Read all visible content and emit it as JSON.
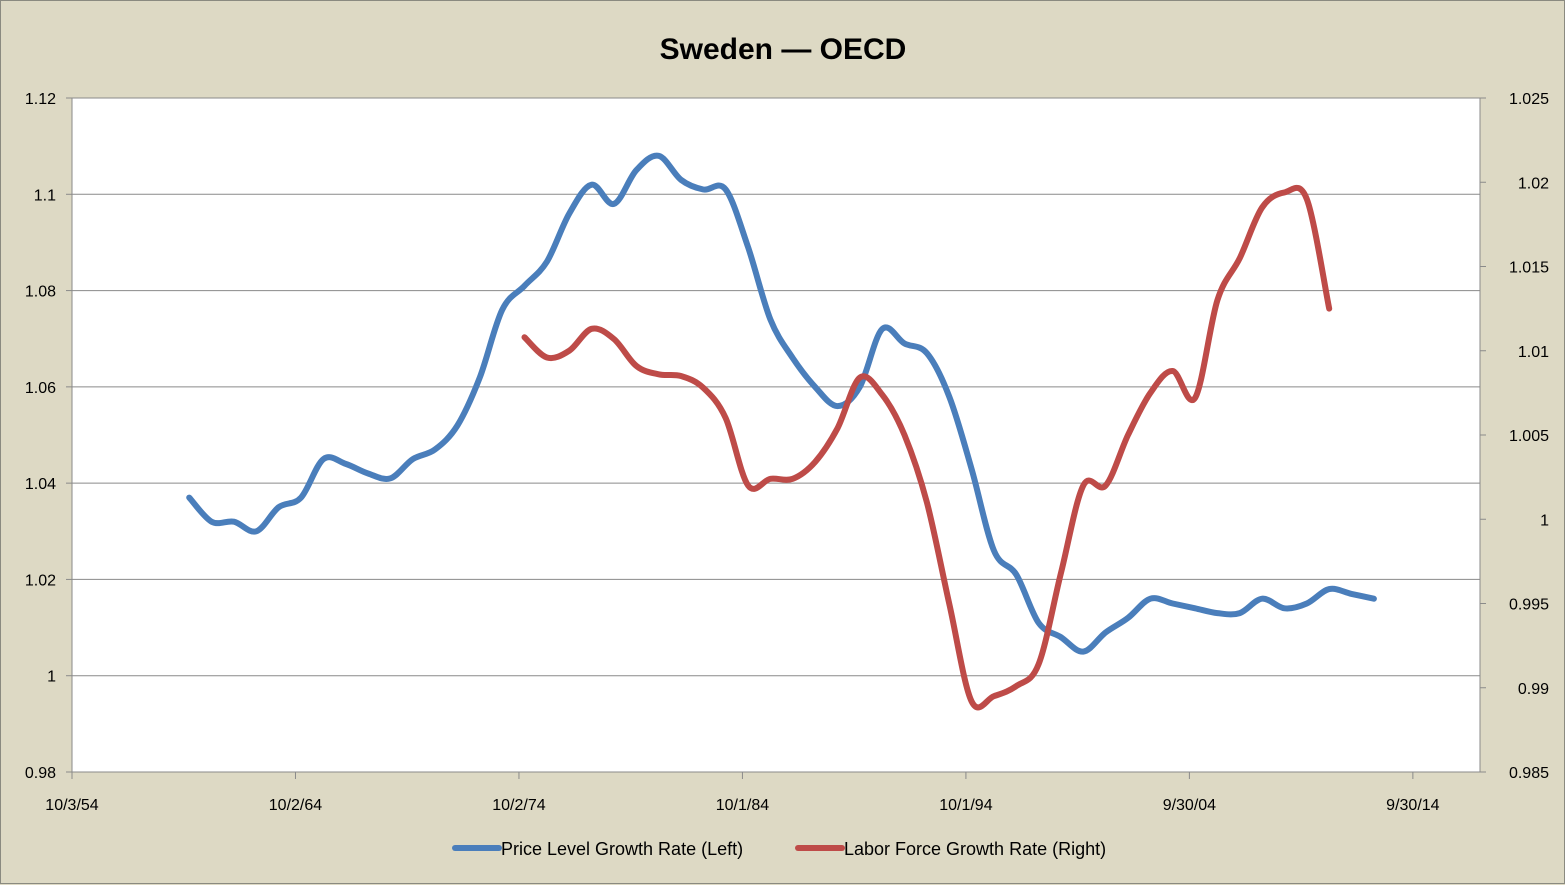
{
  "chart_data": {
    "type": "line",
    "title": "Sweden — OECD",
    "x_axis": {
      "type": "date",
      "range": [
        "1954-10-03",
        "2017-10-01"
      ],
      "tick_labels": [
        "10/3/54",
        "10/2/64",
        "10/2/74",
        "10/1/84",
        "10/1/94",
        "9/30/04",
        "9/30/14"
      ],
      "tick_dates": [
        "1954-10-03",
        "1964-10-02",
        "1974-10-02",
        "1984-10-01",
        "1994-10-01",
        "2004-09-30",
        "2014-09-30"
      ]
    },
    "y_axis_left": {
      "range": [
        0.98,
        1.12
      ],
      "tick_values": [
        0.98,
        1,
        1.02,
        1.04,
        1.06,
        1.08,
        1.1,
        1.12
      ],
      "tick_labels": [
        "0.98",
        "1",
        "1.02",
        "1.04",
        "1.06",
        "1.08",
        "1.1",
        "1.12"
      ]
    },
    "y_axis_right": {
      "range": [
        0.985,
        1.025
      ],
      "tick_values": [
        0.985,
        0.99,
        0.995,
        1,
        1.005,
        1.01,
        1.015,
        1.02,
        1.025
      ],
      "tick_labels": [
        "0.985",
        "0.99",
        "0.995",
        "1",
        "1.005",
        "1.01",
        "1.015",
        "1.02",
        "1.025"
      ]
    },
    "grid": "horizontal",
    "legend_position": "bottom",
    "series": [
      {
        "name": "Price Level Growth Rate (Left)",
        "axis": "left",
        "color": "#4a7ebb",
        "x": [
          "1960-01-01",
          "1961-01-01",
          "1962-01-01",
          "1963-01-01",
          "1964-01-01",
          "1965-01-01",
          "1966-01-01",
          "1967-01-01",
          "1968-01-01",
          "1969-01-01",
          "1970-01-01",
          "1971-01-01",
          "1972-01-01",
          "1973-01-01",
          "1974-01-01",
          "1975-01-01",
          "1976-01-01",
          "1977-01-01",
          "1978-01-01",
          "1979-01-01",
          "1980-01-01",
          "1981-01-01",
          "1982-01-01",
          "1983-01-01",
          "1984-01-01",
          "1985-01-01",
          "1986-01-01",
          "1987-01-01",
          "1988-01-01",
          "1989-01-01",
          "1990-01-01",
          "1991-01-01",
          "1992-01-01",
          "1993-01-01",
          "1994-01-01",
          "1995-01-01",
          "1996-01-01",
          "1997-01-01",
          "1998-01-01",
          "1999-01-01",
          "2000-01-01",
          "2001-01-01",
          "2002-01-01",
          "2003-01-01",
          "2004-01-01",
          "2005-01-01",
          "2006-01-01",
          "2007-01-01",
          "2008-01-01",
          "2009-01-01",
          "2010-01-01",
          "2011-01-01",
          "2012-01-01",
          "2013-01-01"
        ],
        "values": [
          1.037,
          1.032,
          1.032,
          1.03,
          1.035,
          1.037,
          1.045,
          1.044,
          1.042,
          1.041,
          1.045,
          1.047,
          1.052,
          1.062,
          1.076,
          1.081,
          1.086,
          1.096,
          1.102,
          1.098,
          1.105,
          1.108,
          1.103,
          1.101,
          1.101,
          1.089,
          1.074,
          1.066,
          1.06,
          1.056,
          1.06,
          1.072,
          1.069,
          1.067,
          1.058,
          1.043,
          1.026,
          1.021,
          1.011,
          1.008,
          1.005,
          1.009,
          1.012,
          1.016,
          1.015,
          1.014,
          1.013,
          1.013,
          1.016,
          1.014,
          1.015,
          1.018,
          1.017,
          1.016
        ]
      },
      {
        "name": "Labor Force Growth Rate (Right)",
        "axis": "right",
        "color": "#be4b48",
        "x": [
          "1975-01-01",
          "1976-01-01",
          "1977-01-01",
          "1978-01-01",
          "1979-01-01",
          "1980-01-01",
          "1981-01-01",
          "1982-01-01",
          "1983-01-01",
          "1984-01-01",
          "1985-01-01",
          "1986-01-01",
          "1987-01-01",
          "1988-01-01",
          "1989-01-01",
          "1990-01-01",
          "1991-01-01",
          "1992-01-01",
          "1993-01-01",
          "1994-01-01",
          "1995-01-01",
          "1996-01-01",
          "1997-01-01",
          "1998-01-01",
          "1999-01-01",
          "2000-01-01",
          "2001-01-01",
          "2002-01-01",
          "2003-01-01",
          "2004-01-01",
          "2005-01-01",
          "2006-01-01",
          "2007-01-01",
          "2008-01-01",
          "2009-01-01",
          "2010-01-01",
          "2011-01-01"
        ],
        "values": [
          1.0108,
          1.0096,
          1.01,
          1.0113,
          1.0107,
          1.0091,
          1.0086,
          1.0085,
          1.0078,
          1.006,
          1.002,
          1.0024,
          1.0024,
          1.0034,
          1.0054,
          1.0084,
          1.0074,
          1.005,
          1.001,
          0.995,
          0.9892,
          0.9895,
          0.9901,
          0.9914,
          0.9968,
          1.002,
          1.002,
          1.005,
          1.0075,
          1.0088,
          1.0072,
          1.013,
          1.0155,
          1.0185,
          1.0194,
          1.019,
          1.0125
        ]
      }
    ]
  }
}
